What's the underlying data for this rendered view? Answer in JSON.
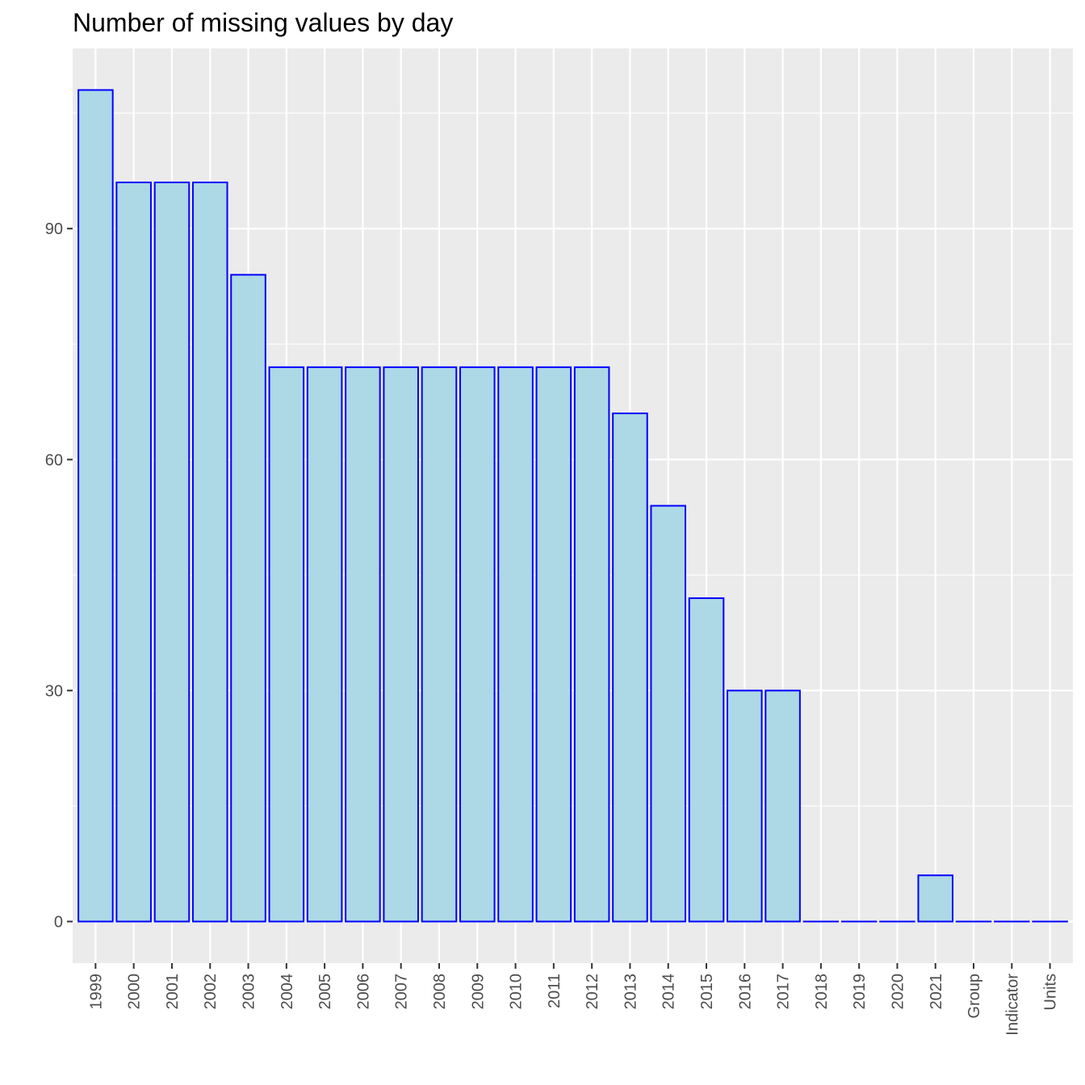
{
  "chart_data": {
    "type": "bar",
    "title": "Number of missing values by day",
    "xlabel": "",
    "ylabel": "",
    "categories": [
      "1999",
      "2000",
      "2001",
      "2002",
      "2003",
      "2004",
      "2005",
      "2006",
      "2007",
      "2008",
      "2009",
      "2010",
      "2011",
      "2012",
      "2013",
      "2014",
      "2015",
      "2016",
      "2017",
      "2018",
      "2019",
      "2020",
      "2021",
      "Group",
      "Indicator",
      "Units"
    ],
    "values": [
      108,
      96,
      96,
      96,
      84,
      72,
      72,
      72,
      72,
      72,
      72,
      72,
      72,
      72,
      66,
      54,
      42,
      30,
      30,
      0,
      0,
      0,
      6,
      0,
      0,
      0
    ],
    "ylim": [
      -5.4,
      113.4
    ],
    "yticks": [
      0,
      30,
      60,
      90
    ],
    "grid": true,
    "legend": "none",
    "colors": {
      "bar_fill": "#add8e6",
      "bar_stroke": "#0000ff",
      "panel": "#ebebeb",
      "grid": "#ffffff",
      "text": "#4d4d4d"
    }
  }
}
